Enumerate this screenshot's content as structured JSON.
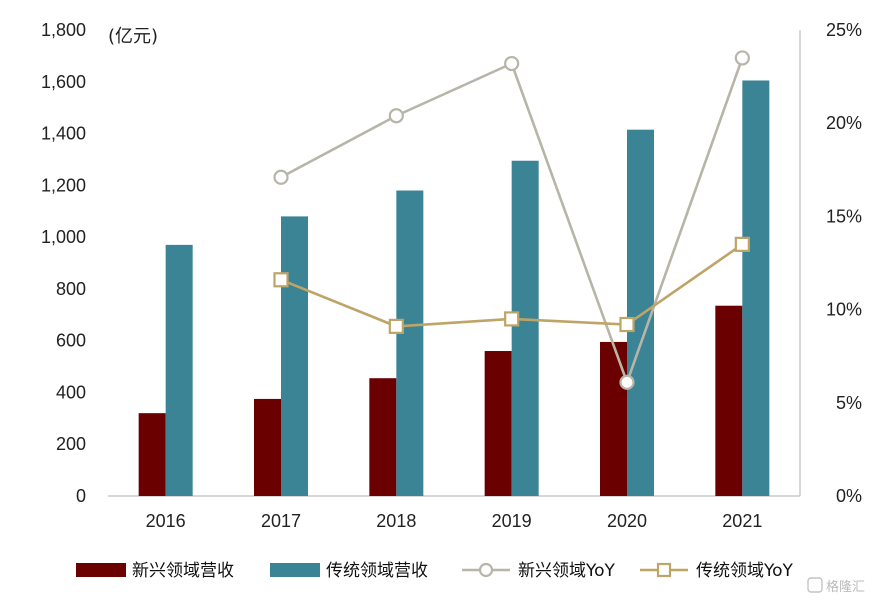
{
  "chart_data": {
    "type": "bar",
    "categories": [
      "2016",
      "2017",
      "2018",
      "2019",
      "2020",
      "2021"
    ],
    "y_unit": "(亿元)",
    "ylim": [
      0,
      1800
    ],
    "y_ticks": [
      "0",
      "200",
      "400",
      "600",
      "800",
      "1,000",
      "1,200",
      "1,400",
      "1,600",
      "1,800"
    ],
    "y_tick_values": [
      0,
      200,
      400,
      600,
      800,
      1000,
      1200,
      1400,
      1600,
      1800
    ],
    "y2lim": [
      0,
      0.25
    ],
    "y2_ticks": [
      "0%",
      "5%",
      "10%",
      "15%",
      "20%",
      "25%"
    ],
    "y2_tick_values": [
      0,
      0.05,
      0.1,
      0.15,
      0.2,
      0.25
    ],
    "grid": false,
    "legend_position": "bottom",
    "series": [
      {
        "name": "新兴领域营收",
        "kind": "bar",
        "axis": "left",
        "color": "#6b0000",
        "values": [
          320,
          375,
          455,
          560,
          595,
          735
        ]
      },
      {
        "name": "传统领域营收",
        "kind": "bar",
        "axis": "left",
        "color": "#3a8496",
        "values": [
          970,
          1080,
          1180,
          1295,
          1415,
          1605
        ]
      },
      {
        "name": "新兴领域YoY",
        "kind": "line",
        "marker": "circle",
        "axis": "right",
        "color": "#b7b5a8",
        "values": [
          null,
          0.171,
          0.204,
          0.232,
          0.061,
          0.235
        ]
      },
      {
        "name": "传统领域YoY",
        "kind": "line",
        "marker": "square",
        "axis": "right",
        "color": "#bfa467",
        "values": [
          null,
          0.116,
          0.091,
          0.095,
          0.092,
          0.135
        ]
      }
    ]
  },
  "watermark": "格隆汇"
}
